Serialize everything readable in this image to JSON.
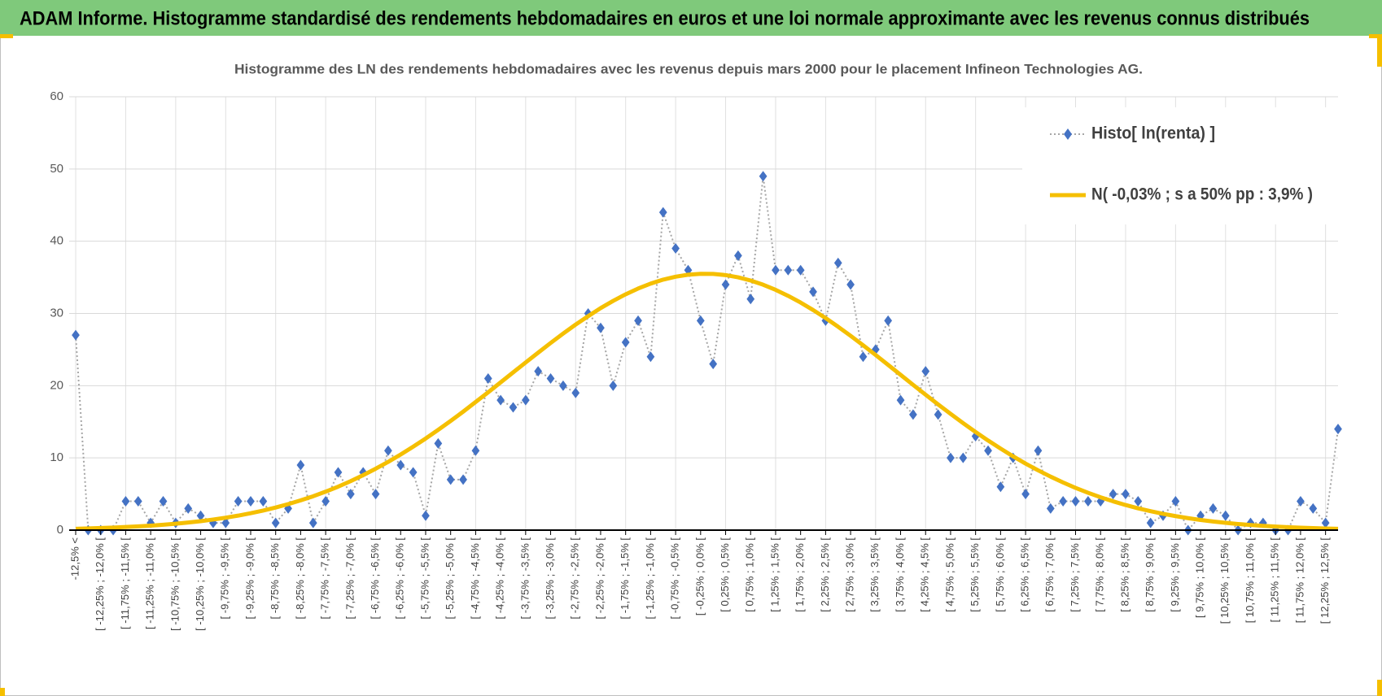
{
  "chart_data": {
    "type": "line",
    "title": "ADAM Informe. Histogramme standardisé des rendements hebdomadaires en euros et une loi normale approximante avec les revenus connus distribués",
    "subtitle": "Histogramme des LN des rendements hebdomadaires avec les revenus depuis mars 2000 pour le placement Infineon Technologies AG.",
    "categories": [
      "-12,5% <",
      null,
      "[ -12,25% ; -12,0% [",
      null,
      "[ -11,75% ; -11,5% [",
      null,
      "[ -11,25% ; -11,0% [",
      null,
      "[ -10,75% ; -10,5% [",
      null,
      "[ -10,25% ; -10,0% [",
      null,
      "[ -9,75% ; -9,5% [",
      null,
      "[ -9,25% ; -9,0% [",
      null,
      "[ -8,75% ; -8,5% [",
      null,
      "[ -8,25% ; -8,0% [",
      null,
      "[ -7,75% ; -7,5% [",
      null,
      "[ -7,25% ; -7,0% [",
      null,
      "[ -6,75% ; -6,5% [",
      null,
      "[ -6,25% ; -6,0% [",
      null,
      "[ -5,75% ; -5,5% [",
      null,
      "[ -5,25% ; -5,0% [",
      null,
      "[ -4,75% ; -4,5% [",
      null,
      "[ -4,25% ; -4,0% [",
      null,
      "[ -3,75% ; -3,5% [",
      null,
      "[ -3,25% ; -3,0% [",
      null,
      "[ -2,75% ; -2,5% [",
      null,
      "[ -2,25% ; -2,0% [",
      null,
      "[ -1,75% ; -1,5% [",
      null,
      "[ -1,25% ; -1,0% [",
      null,
      "[ -0,75% ; -0,5% [",
      null,
      "[ -0,25% ; 0,0% [",
      null,
      "[ 0,25% ; 0,5% [",
      null,
      "[ 0,75% ; 1,0% [",
      null,
      "[ 1,25% ; 1,5% [",
      null,
      "[ 1,75% ; 2,0% [",
      null,
      "[ 2,25% ; 2,5% [",
      null,
      "[ 2,75% ; 3,0% [",
      null,
      "[ 3,25% ; 3,5% [",
      null,
      "[ 3,75% ; 4,0% [",
      null,
      "[ 4,25% ; 4,5% [",
      null,
      "[ 4,75% ; 5,0% [",
      null,
      "[ 5,25% ; 5,5% [",
      null,
      "[ 5,75% ; 6,0% [",
      null,
      "[ 6,25% ; 6,5% [",
      null,
      "[ 6,75% ; 7,0% [",
      null,
      "[ 7,25% ; 7,5% [",
      null,
      "[ 7,75% ; 8,0% [",
      null,
      "[ 8,25% ; 8,5% [",
      null,
      "[ 8,75% ; 9,0% [",
      null,
      "[ 9,25% ; 9,5% [",
      null,
      "[ 9,75% ; 10,0% [",
      null,
      "[ 10,25% ; 10,5% [",
      null,
      "[ 10,75% ; 11,0% [",
      null,
      "[ 11,25% ; 11,5% [",
      null,
      "[ 11,75% ; 12,0% [",
      null,
      "[ 12,25% ; 12,5% [",
      null
    ],
    "series": [
      {
        "name": "Histo[ ln(renta) ]",
        "color": "#4472c4",
        "line_color": "#a6a6a6",
        "marker": "diamond",
        "values": [
          27,
          0,
          0,
          0,
          4,
          4,
          1,
          4,
          1,
          3,
          2,
          1,
          1,
          4,
          4,
          4,
          1,
          3,
          9,
          1,
          4,
          8,
          5,
          8,
          5,
          11,
          9,
          8,
          2,
          12,
          7,
          7,
          11,
          21,
          18,
          17,
          18,
          22,
          21,
          20,
          19,
          30,
          28,
          20,
          26,
          29,
          24,
          44,
          39,
          36,
          29,
          23,
          34,
          38,
          32,
          49,
          36,
          36,
          36,
          33,
          29,
          37,
          34,
          24,
          25,
          29,
          18,
          16,
          22,
          16,
          10,
          10,
          13,
          11,
          6,
          10,
          5,
          11,
          3,
          4,
          4,
          4,
          4,
          5,
          5,
          4,
          1,
          2,
          4,
          0,
          2,
          3,
          2,
          0,
          1,
          1,
          0,
          0,
          4,
          3,
          1,
          14
        ]
      },
      {
        "name": "N( -0,03% ; s a 50% pp : 3,9% )",
        "color": "#f5bf00",
        "values": [
          0.19,
          0.24,
          0.29,
          0.35,
          0.43,
          0.52,
          0.62,
          0.74,
          0.89,
          1.05,
          1.24,
          1.47,
          1.72,
          2.01,
          2.34,
          2.71,
          3.13,
          3.6,
          4.12,
          4.69,
          5.33,
          6.02,
          6.78,
          7.61,
          8.5,
          9.45,
          10.47,
          11.55,
          12.68,
          13.88,
          15.12,
          16.4,
          17.74,
          19.08,
          20.46,
          21.84,
          23.21,
          24.57,
          25.91,
          27.21,
          28.46,
          29.62,
          30.74,
          31.74,
          32.65,
          33.45,
          34.13,
          34.68,
          35.09,
          35.36,
          35.49,
          35.47,
          35.31,
          35.0,
          34.56,
          33.98,
          33.27,
          32.44,
          31.51,
          30.47,
          29.36,
          28.16,
          26.9,
          25.59,
          24.25,
          22.88,
          21.5,
          20.12,
          18.75,
          17.41,
          16.1,
          14.82,
          13.59,
          12.41,
          11.29,
          10.22,
          9.21,
          8.28,
          7.41,
          6.6,
          5.85,
          5.17,
          4.55,
          3.99,
          3.48,
          3.02,
          2.62,
          2.26,
          1.94,
          1.66,
          1.41,
          1.2,
          1.01,
          0.85,
          0.71,
          0.59,
          0.49,
          0.41,
          0.34,
          0.28,
          0.23,
          0.18
        ]
      }
    ],
    "ylim": [
      0,
      60
    ],
    "yticks": [
      0,
      10,
      20,
      30,
      40,
      50,
      60
    ],
    "grid": true,
    "legend": "top-right"
  }
}
